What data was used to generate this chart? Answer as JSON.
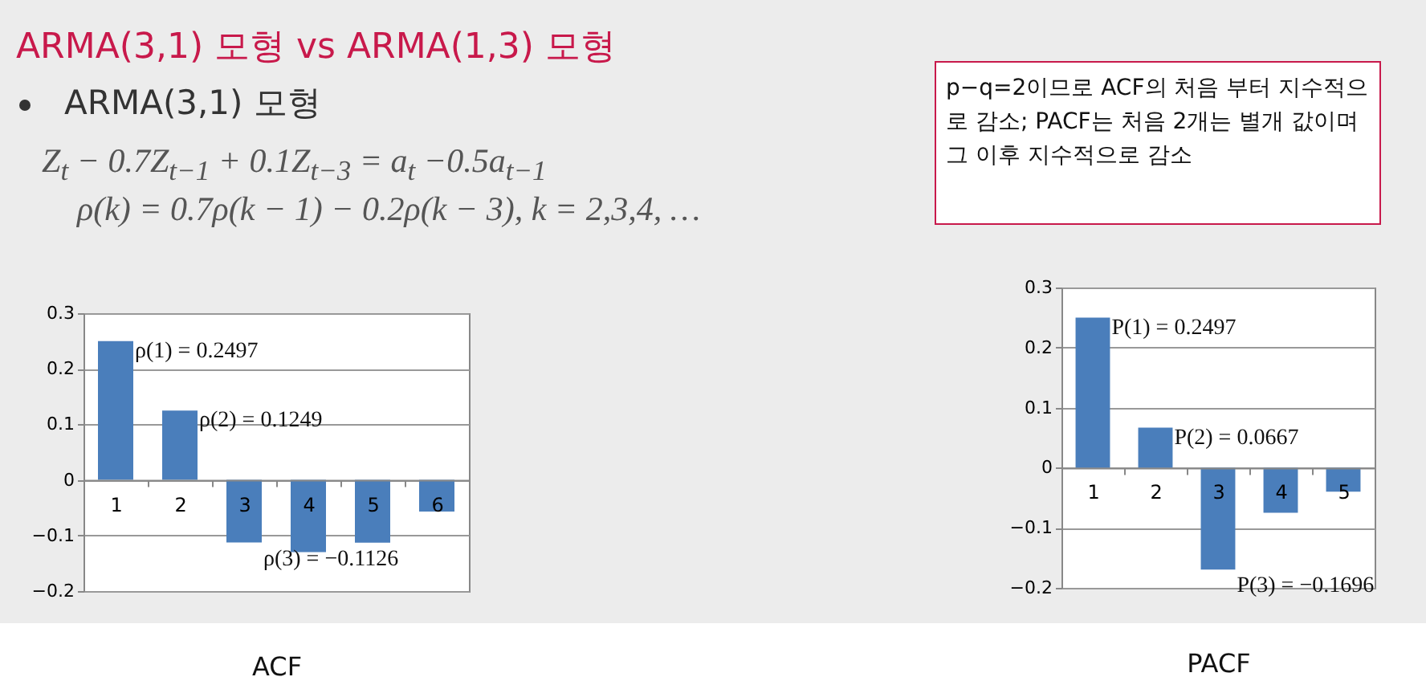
{
  "chart_data": [
    {
      "type": "other",
      "title": "ARMA(3,1) 모형 vs ARMA(1,3) 모형",
      "annotations": [
        "ARMA(3,1) 모형",
        "Z$_{t}$ − 0.7Z$_{t−1}$ + 0.1Z$_{t−3}$ = a$_{t}$ −0.5a$_{t−1}$",
        "ρ(k) = 0.7ρ(k − 1) − 0.2ρ(k − 3),  k = 2,3,4, …",
        "p−q=2이므로 ACF의 처음 부터 지수적으로 감소; PACF는 처음 2개는 별개 값이며 그 이후 지수적으로 감소"
      ]
    },
    {
      "type": "bar",
      "xlabel": "ACF",
      "categories": [
        "1",
        "2",
        "3",
        "4",
        "5",
        "6"
      ],
      "values": [
        0.2497,
        0.1249,
        -0.1126,
        -0.13,
        -0.113,
        -0.057
      ],
      "color": "#4a7ebb",
      "ylim": [
        -0.2,
        0.3
      ],
      "yticks": [
        -0.2,
        -0.1,
        0,
        0.1,
        0.2,
        0.3
      ],
      "grid": "y",
      "annotations": [
        {
          "text": "ρ(1) = 0.2497",
          "x": "1",
          "y": 0.2497
        },
        {
          "text": "ρ(2) = 0.1249",
          "x": "2",
          "y": 0.1249
        },
        {
          "text": "ρ(3) = −0.1126",
          "x": "3",
          "y": -0.1126
        }
      ]
    },
    {
      "type": "bar",
      "xlabel": "PACF",
      "categories": [
        "1",
        "2",
        "3",
        "4",
        "5"
      ],
      "values": [
        0.2497,
        0.0667,
        -0.1696,
        -0.075,
        -0.04
      ],
      "color": "#4a7ebb",
      "ylim": [
        -0.2,
        0.3
      ],
      "yticks": [
        -0.2,
        -0.1,
        0,
        0.1,
        0.2,
        0.3
      ],
      "grid": "y",
      "annotations": [
        {
          "text": "P(1) = 0.2497",
          "x": "1",
          "y": 0.2497
        },
        {
          "text": "P(2) = 0.0667",
          "x": "2",
          "y": 0.0667
        },
        {
          "text": "P(3) = −0.1696",
          "x": "3",
          "y": -0.1696
        }
      ]
    }
  ]
}
